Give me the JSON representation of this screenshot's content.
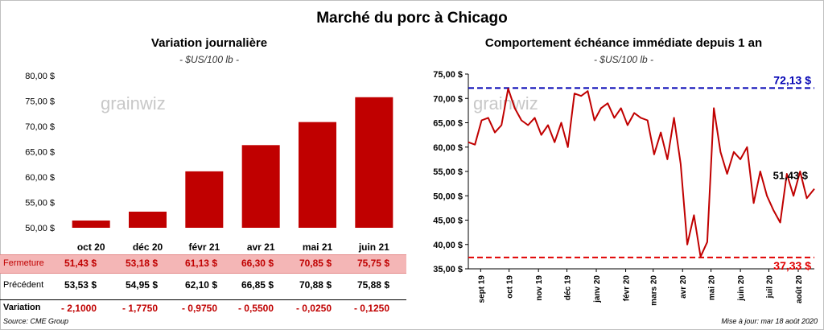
{
  "title": "Marché du porc à Chicago",
  "left_chart": {
    "subtitle": "Variation  journalière",
    "unit": "- $US/100 lb -",
    "watermark": "grainwiz"
  },
  "right_chart": {
    "subtitle": "Comportement  échéance immédiate depuis 1 an",
    "unit": "- $US/100 lb -",
    "watermark": "grainwiz"
  },
  "chart_data": [
    {
      "type": "bar",
      "categories": [
        "oct 20",
        "déc 20",
        "févr 21",
        "avr 21",
        "mai 21",
        "juin 21"
      ],
      "values": [
        51.43,
        53.18,
        61.13,
        66.3,
        70.85,
        75.75
      ],
      "ylim": [
        50,
        80
      ],
      "yticks": [
        "50,00 $",
        "55,00 $",
        "60,00 $",
        "65,00 $",
        "70,00 $",
        "75,00 $",
        "80,00 $"
      ],
      "color": "#c00000",
      "grid": false
    },
    {
      "type": "line",
      "ylim": [
        35,
        75
      ],
      "yticks": [
        "35,00 $",
        "40,00 $",
        "45,00 $",
        "50,00 $",
        "55,00 $",
        "60,00 $",
        "65,00 $",
        "70,00 $",
        "75,00 $"
      ],
      "xticks": [
        "sept 19",
        "oct 19",
        "nov 19",
        "déc 19",
        "janv 20",
        "févr 20",
        "mars 20",
        "avr 20",
        "mai 20",
        "juin 20",
        "juil 20",
        "août 20"
      ],
      "series": [
        {
          "color": "#c00000",
          "x": [
            "2019-08-19",
            "2019-08-26",
            "2019-09-02",
            "2019-09-09",
            "2019-09-16",
            "2019-09-23",
            "2019-09-30",
            "2019-10-07",
            "2019-10-14",
            "2019-10-21",
            "2019-10-28",
            "2019-11-04",
            "2019-11-11",
            "2019-11-18",
            "2019-11-25",
            "2019-12-02",
            "2019-12-09",
            "2019-12-16",
            "2019-12-23",
            "2019-12-30",
            "2020-01-06",
            "2020-01-13",
            "2020-01-20",
            "2020-01-27",
            "2020-02-03",
            "2020-02-10",
            "2020-02-17",
            "2020-02-24",
            "2020-03-02",
            "2020-03-09",
            "2020-03-16",
            "2020-03-23",
            "2020-03-30",
            "2020-04-06",
            "2020-04-13",
            "2020-04-20",
            "2020-04-27",
            "2020-05-04",
            "2020-05-11",
            "2020-05-18",
            "2020-05-25",
            "2020-06-01",
            "2020-06-08",
            "2020-06-15",
            "2020-06-22",
            "2020-06-29",
            "2020-07-06",
            "2020-07-13",
            "2020-07-20",
            "2020-07-27",
            "2020-08-03",
            "2020-08-10",
            "2020-08-18"
          ],
          "y": [
            61,
            60.5,
            65.5,
            66,
            63,
            64.5,
            72,
            68,
            65.5,
            64.5,
            66,
            62.5,
            64.5,
            61,
            65,
            60,
            71,
            70.5,
            71.5,
            65.5,
            68,
            69,
            66,
            68,
            64.5,
            67,
            66,
            65.5,
            58.5,
            63,
            57.5,
            66,
            56.5,
            40,
            46,
            37.5,
            40.5,
            68,
            59,
            54.5,
            59,
            57.5,
            60,
            48.5,
            55,
            50,
            47,
            44.5,
            54.5,
            50,
            55,
            49.5,
            51.43
          ]
        }
      ],
      "hlines": [
        {
          "value": 72.13,
          "label": "72,13 $",
          "color": "#0000b4"
        },
        {
          "value": 37.33,
          "label": "37,33 $",
          "color": "#e00000"
        }
      ],
      "last_label": "51,43 $",
      "grid": false
    }
  ],
  "table": {
    "rows": [
      {
        "label": "Fermeture",
        "values": [
          "51,43  $",
          "53,18  $",
          "61,13  $",
          "66,30  $",
          "70,85  $",
          "75,75  $"
        ]
      },
      {
        "label": "Précédent",
        "values": [
          "53,53  $",
          "54,95  $",
          "62,10  $",
          "66,85  $",
          "70,88  $",
          "75,88  $"
        ]
      },
      {
        "label": "Variation",
        "values": [
          "- 2,1000",
          "- 1,7750",
          "- 0,9750",
          "- 0,5500",
          "- 0,0250",
          "- 0,1250"
        ]
      }
    ]
  },
  "source": "Source: CME Group",
  "update": "Mise à jour: mar 18 août 2020"
}
